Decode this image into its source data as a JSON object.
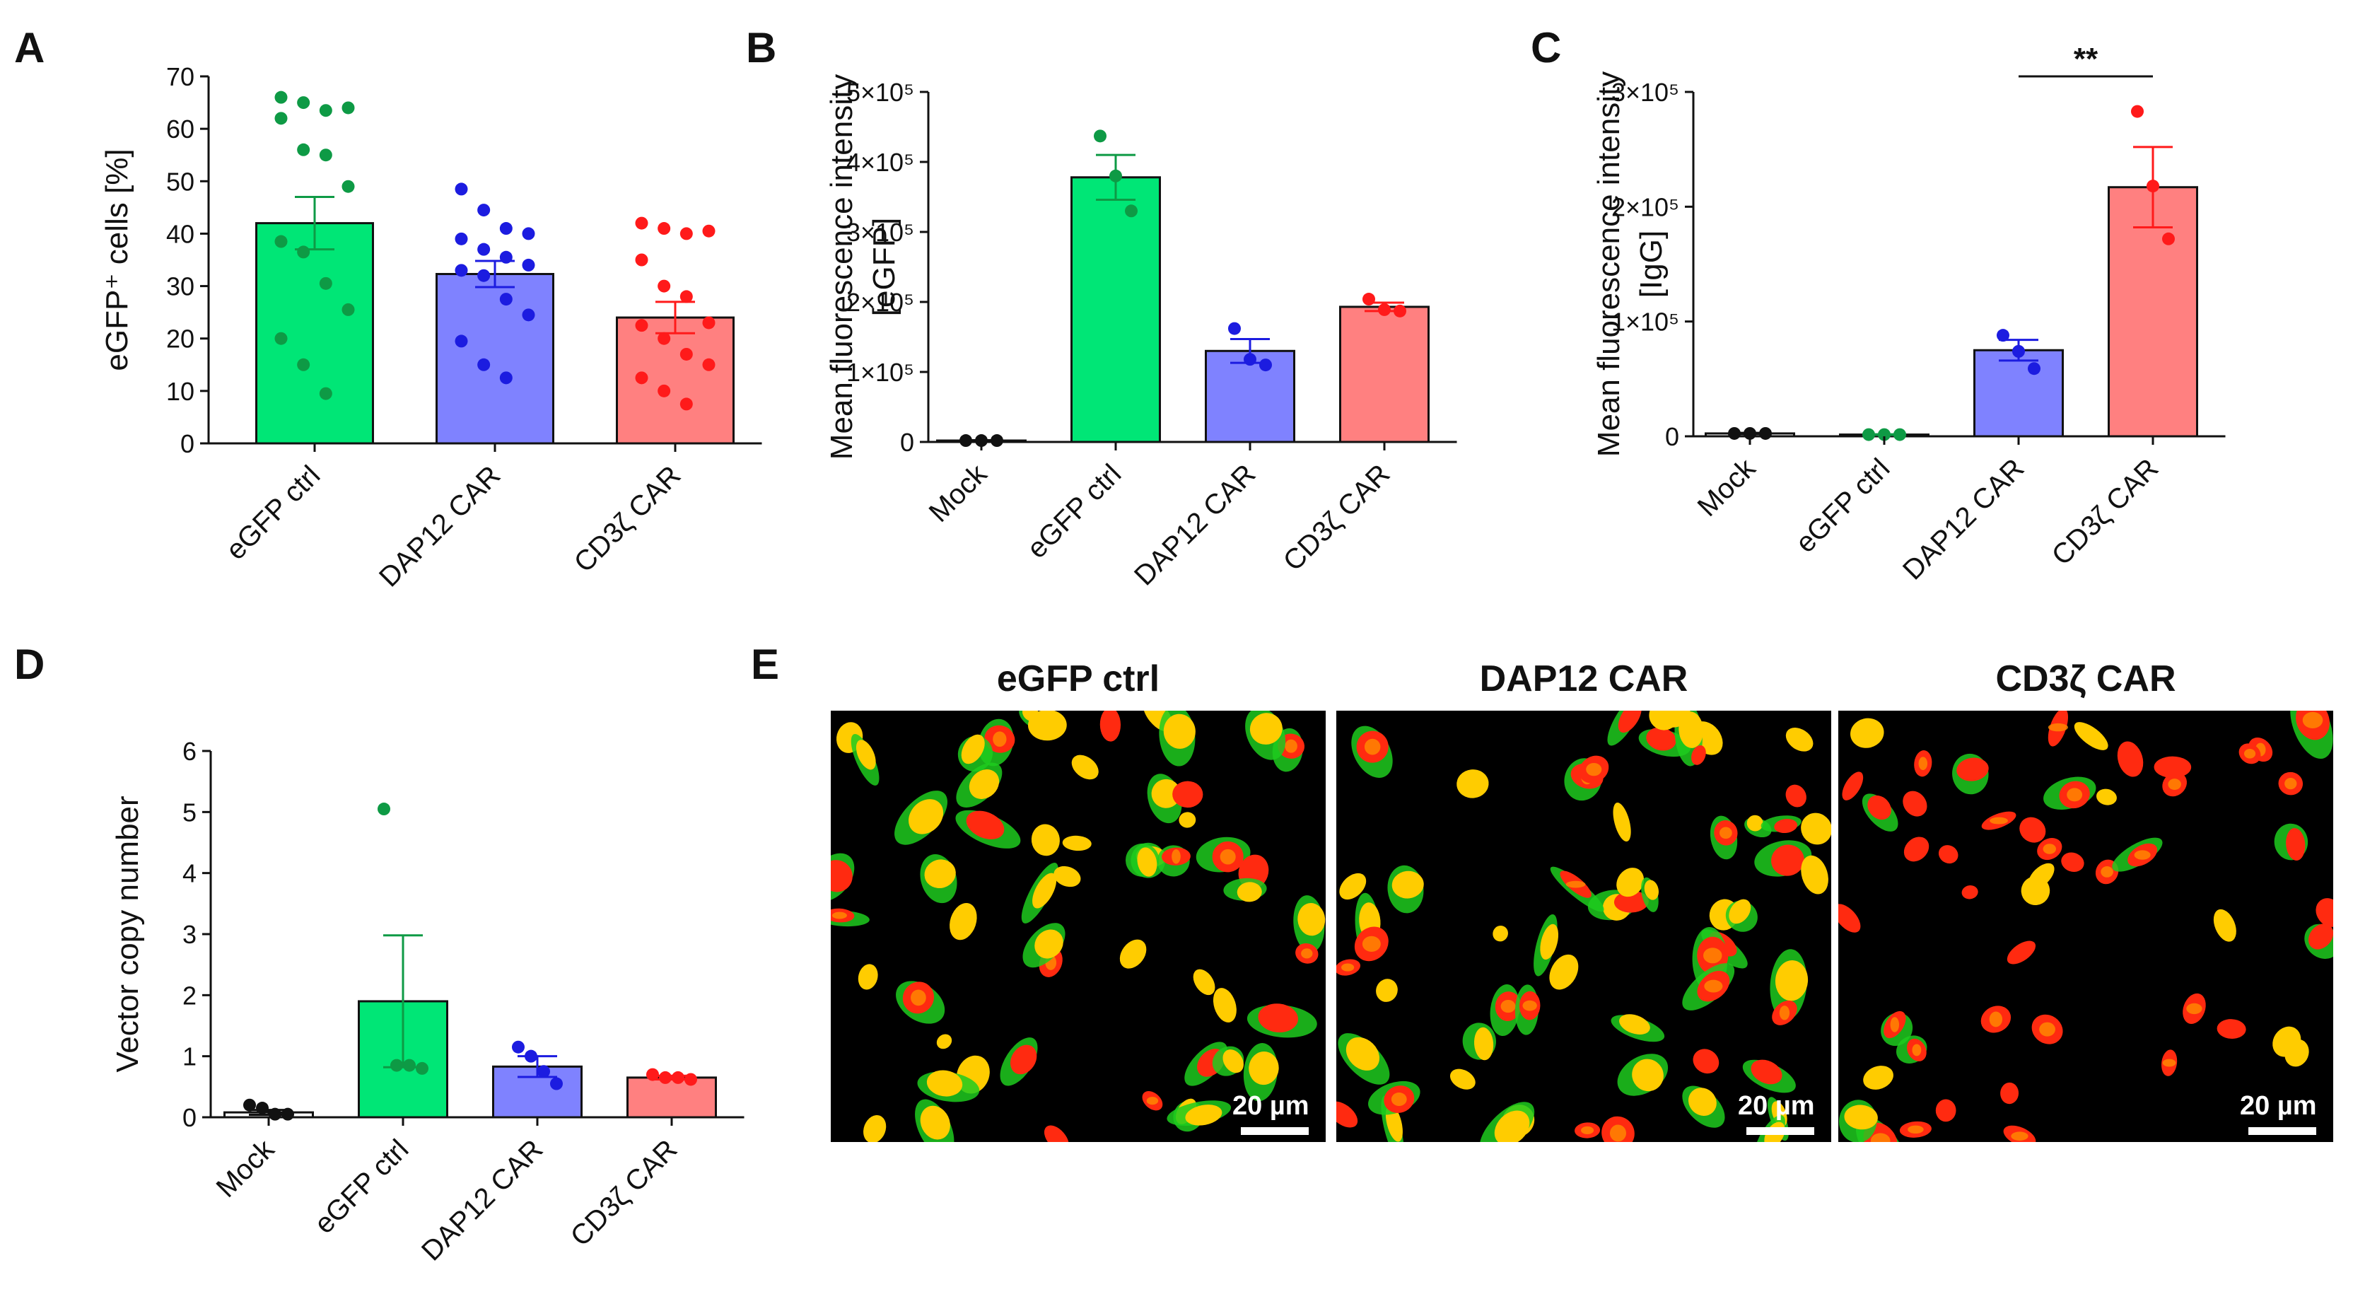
{
  "colors": {
    "green_fill": "#00e676",
    "green_dot": "#0e9a45",
    "blue_fill": "#7f82ff",
    "blue_dot": "#1c1ce0",
    "red_fill": "#ff8080",
    "red_dot": "#ff1a1a",
    "black": "#111111"
  },
  "chart_data": [
    {
      "id": "A",
      "panel_label": "A",
      "type": "bar",
      "ylabel": "eGFP⁺ cells [%]",
      "ylim": [
        0,
        70
      ],
      "yticks": [
        "0",
        "10",
        "20",
        "30",
        "40",
        "50",
        "60",
        "70"
      ],
      "categories": [
        "eGFP ctrl",
        "DAP12 CAR",
        "CD3ζ CAR"
      ],
      "colors": [
        "green",
        "blue",
        "red"
      ],
      "values": [
        42,
        32.3,
        24
      ],
      "sem": [
        5,
        2.5,
        3
      ],
      "points": [
        [
          66,
          65,
          63.5,
          64,
          62,
          56,
          55,
          49,
          38.5,
          36.5,
          30.5,
          25.5,
          20,
          15,
          9.5
        ],
        [
          48.5,
          44.5,
          41,
          40,
          39,
          37,
          35.5,
          34,
          33,
          32,
          27.5,
          24.5,
          19.5,
          15,
          12.5
        ],
        [
          42,
          41,
          40,
          40.5,
          35,
          30,
          28,
          23,
          22.5,
          20,
          17,
          15,
          12.5,
          10,
          7.5
        ]
      ]
    },
    {
      "id": "B",
      "panel_label": "B",
      "type": "bar",
      "ylabel": "Mean fluorescence intensity",
      "ylabel2": "[eGFP]",
      "ylim": [
        0,
        500000
      ],
      "yticks": [
        "0",
        "1×10⁵",
        "2×10⁵",
        "3×10⁵",
        "4×10⁵",
        "5×10⁵"
      ],
      "categories": [
        "Mock",
        "eGFP ctrl",
        "DAP12 CAR",
        "CD3ζ CAR"
      ],
      "colors": [
        "black",
        "green",
        "blue",
        "red"
      ],
      "values": [
        2000,
        378000,
        130000,
        193000
      ],
      "sem": [
        500,
        32000,
        17000,
        6000
      ],
      "points": [
        [
          2000,
          2000,
          2000
        ],
        [
          437000,
          380000,
          330000
        ],
        [
          162000,
          118000,
          110000
        ],
        [
          204000,
          189000,
          187000
        ]
      ]
    },
    {
      "id": "C",
      "panel_label": "C",
      "type": "bar",
      "ylabel": "Mean fluorescence intensity",
      "ylabel2": "[IgG]",
      "ylim": [
        0,
        300000
      ],
      "yticks": [
        "0",
        "1×10⁵",
        "2×10⁵",
        "3×10⁵"
      ],
      "categories": [
        "Mock",
        "eGFP ctrl",
        "DAP12 CAR",
        "CD3ζ CAR"
      ],
      "colors": [
        "black",
        "green",
        "blue",
        "red"
      ],
      "values": [
        2500,
        1500,
        75000,
        217000
      ],
      "sem": [
        500,
        300,
        9000,
        35000
      ],
      "points": [
        [
          2500,
          2500,
          2500
        ],
        [
          1500,
          1500,
          1500
        ],
        [
          88000,
          74000,
          59000
        ],
        [
          283000,
          218000,
          172000
        ]
      ],
      "annotation": "**"
    },
    {
      "id": "D",
      "panel_label": "D",
      "type": "bar",
      "ylabel": "Vector copy number",
      "ylim": [
        0,
        6
      ],
      "yticks": [
        "0",
        "1",
        "2",
        "3",
        "4",
        "5",
        "6"
      ],
      "categories": [
        "Mock",
        "eGFP ctrl",
        "DAP12 CAR",
        "CD3ζ CAR"
      ],
      "colors": [
        "black",
        "green",
        "blue",
        "red"
      ],
      "values": [
        0.08,
        1.9,
        0.83,
        0.65
      ],
      "sem": [
        0.04,
        1.08,
        0.17,
        0.03
      ],
      "points": [
        [
          0.2,
          0.15,
          0.05,
          0.05
        ],
        [
          5.05,
          0.85,
          0.85,
          0.8
        ],
        [
          1.15,
          1.0,
          0.75,
          0.55
        ],
        [
          0.7,
          0.65,
          0.65,
          0.62
        ]
      ]
    }
  ],
  "panel_e": {
    "label": "E",
    "panels": [
      {
        "title": "eGFP ctrl",
        "scale_label": "20 µm"
      },
      {
        "title": "DAP12 CAR",
        "scale_label": "20 µm"
      },
      {
        "title": "CD3ζ CAR",
        "scale_label": "20 µm"
      }
    ]
  }
}
